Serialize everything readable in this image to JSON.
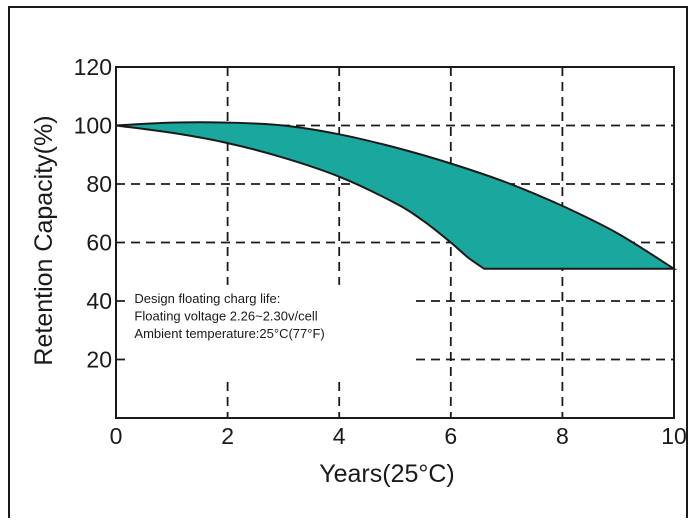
{
  "chart_data": {
    "type": "area",
    "title": "",
    "xlabel": "Years(25°C)",
    "ylabel": "Retention Capacity(%)",
    "xlim": [
      0,
      10
    ],
    "ylim": [
      0,
      120
    ],
    "xticks": [
      "0",
      "2",
      "4",
      "6",
      "8",
      "10"
    ],
    "yticks": [
      "20",
      "40",
      "60",
      "80",
      "100",
      "120"
    ],
    "grid": true,
    "fill_color": "#1aa89e",
    "upper_curve": {
      "x": [
        0,
        1,
        2,
        3,
        4,
        5,
        6,
        7,
        8,
        9,
        10
      ],
      "y": [
        100,
        101,
        101,
        100,
        97,
        92.5,
        87,
        80.5,
        72.5,
        63,
        51
      ]
    },
    "lower_curve": {
      "x": [
        0,
        1,
        2,
        3,
        4,
        5,
        5.5,
        6,
        6.3,
        6.6,
        10
      ],
      "y": [
        100,
        97.5,
        94,
        89,
        82.5,
        73.5,
        67.5,
        60,
        55,
        51,
        51
      ]
    },
    "annotation": [
      "Design floating charg life:",
      "Floating voltage 2.26~2.30v/cell",
      "Ambient temperature:25°C(77°F)"
    ]
  }
}
